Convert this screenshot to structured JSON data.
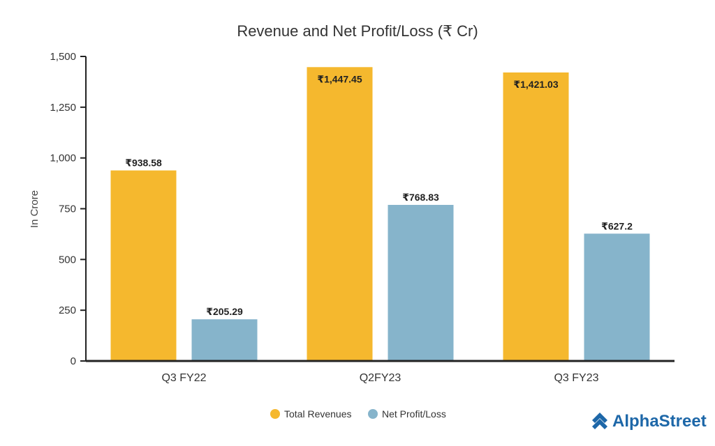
{
  "chart_data": {
    "type": "bar",
    "title": "Revenue and Net Profit/Loss (₹ Cr)",
    "xlabel": "",
    "ylabel": "In Crore",
    "ylim": [
      0,
      1500
    ],
    "yticks": [
      0,
      250,
      500,
      750,
      1000,
      1250,
      1500
    ],
    "ytick_labels": [
      "0",
      "250",
      "500",
      "750",
      "1,000",
      "1,250",
      "1,500"
    ],
    "categories": [
      "Q3 FY22",
      "Q2FY23",
      "Q3 FY23"
    ],
    "series": [
      {
        "name": "Total Revenues",
        "color": "#f5b82e",
        "values": [
          938.58,
          1447.45,
          1421.03
        ],
        "labels": [
          "₹938.58",
          "₹1,447.45",
          "₹1,421.03"
        ],
        "label_position": [
          "above",
          "inside",
          "inside"
        ]
      },
      {
        "name": "Net Profit/Loss",
        "color": "#86b4cb",
        "values": [
          205.29,
          768.83,
          627.2
        ],
        "labels": [
          "₹205.29",
          "₹768.83",
          "₹627.2"
        ],
        "label_position": [
          "above",
          "above",
          "above"
        ]
      }
    ],
    "legend_position": "bottom-center",
    "grid": false
  },
  "brand": {
    "name": "AlphaStreet",
    "color": "#1d67a8",
    "icon": "alphastreet-logo-icon"
  }
}
